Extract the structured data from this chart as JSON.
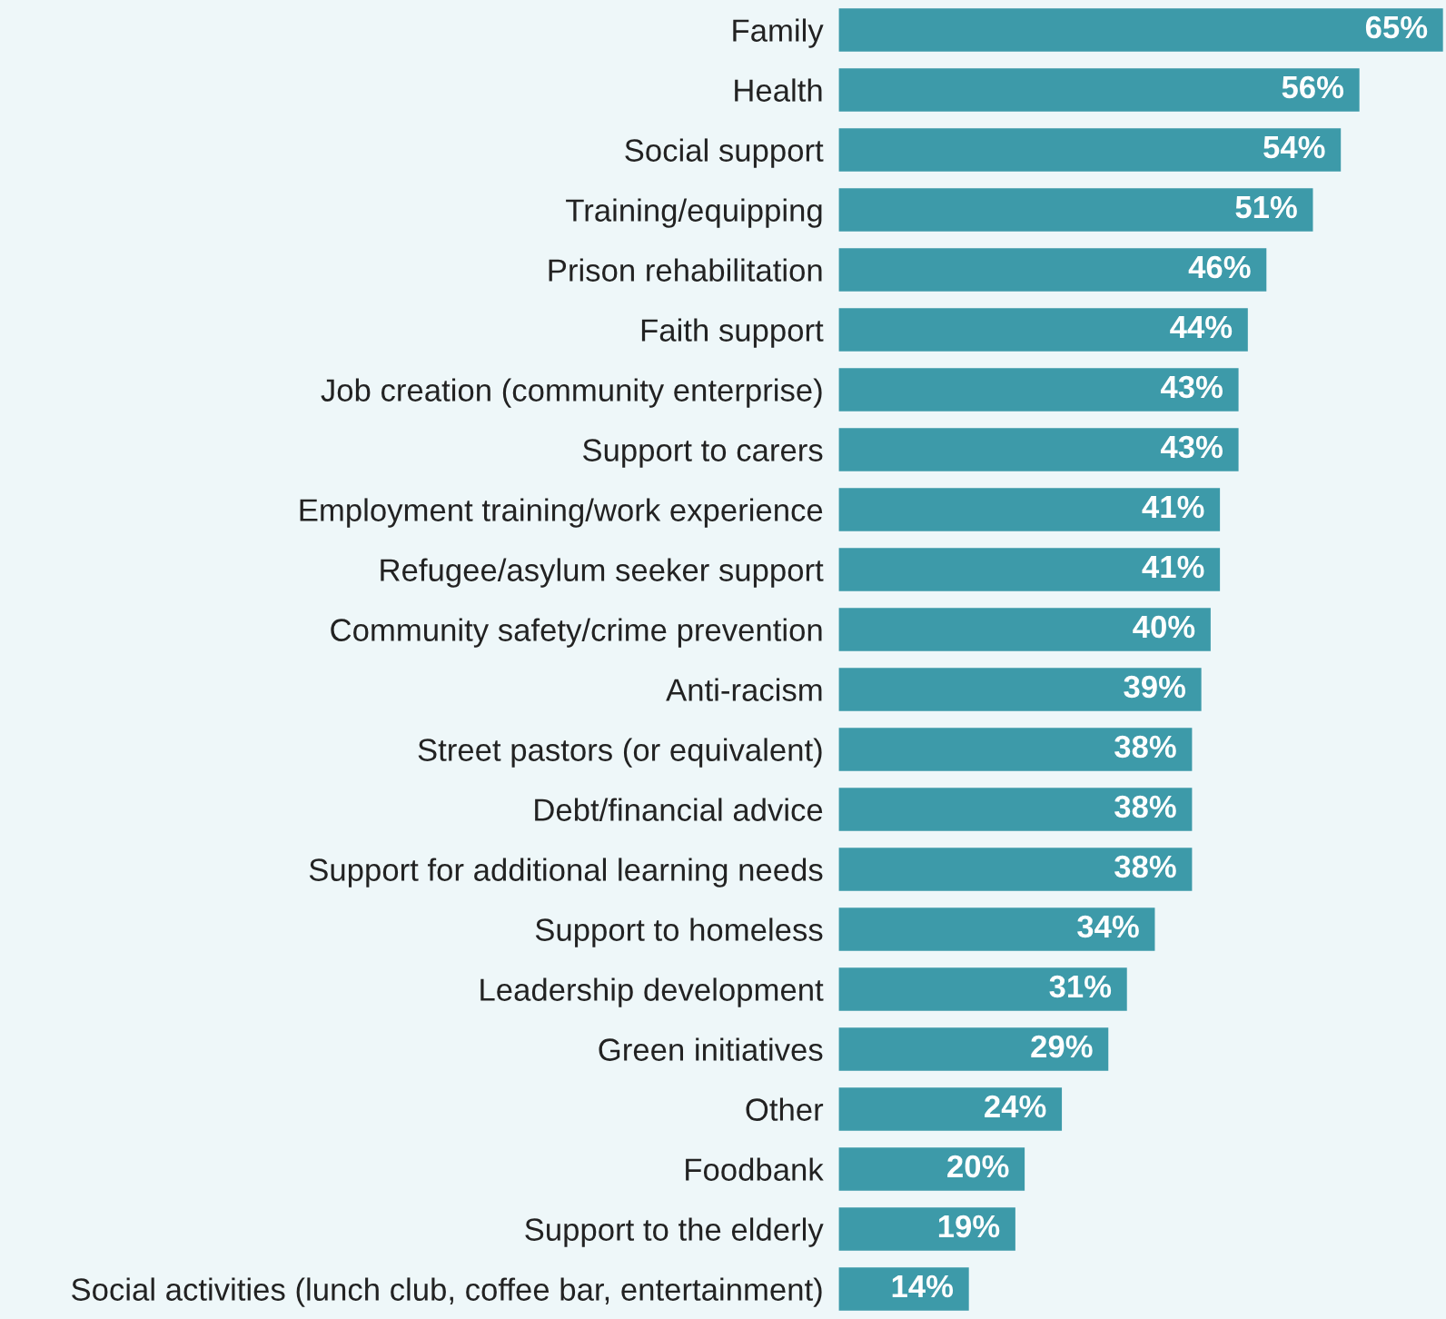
{
  "chart_data": {
    "type": "bar",
    "orientation": "horizontal",
    "categories": [
      "Family",
      "Health",
      "Social support",
      "Training/equipping",
      "Prison rehabilitation",
      "Faith support",
      "Job creation (community enterprise)",
      "Support to carers",
      "Employment training/work experience",
      "Refugee/asylum seeker support",
      "Community safety/crime prevention",
      "Anti-racism",
      "Street pastors (or equivalent)",
      "Debt/financial advice",
      "Support for additional learning needs",
      "Support to homeless",
      "Leadership development",
      "Green initiatives",
      "Other",
      "Foodbank",
      "Support to the elderly",
      "Social activities (lunch club, coffee bar, entertainment)"
    ],
    "values": [
      65,
      56,
      54,
      51,
      46,
      44,
      43,
      43,
      41,
      41,
      40,
      39,
      38,
      38,
      38,
      34,
      31,
      29,
      24,
      20,
      19,
      14
    ],
    "value_labels": [
      "65%",
      "56%",
      "54%",
      "51%",
      "46%",
      "44%",
      "43%",
      "43%",
      "41%",
      "41%",
      "40%",
      "39%",
      "38%",
      "38%",
      "38%",
      "34%",
      "31%",
      "29%",
      "24%",
      "20%",
      "19%",
      "14%"
    ],
    "color": "#3d9aa9",
    "grid": false,
    "legend": false
  }
}
